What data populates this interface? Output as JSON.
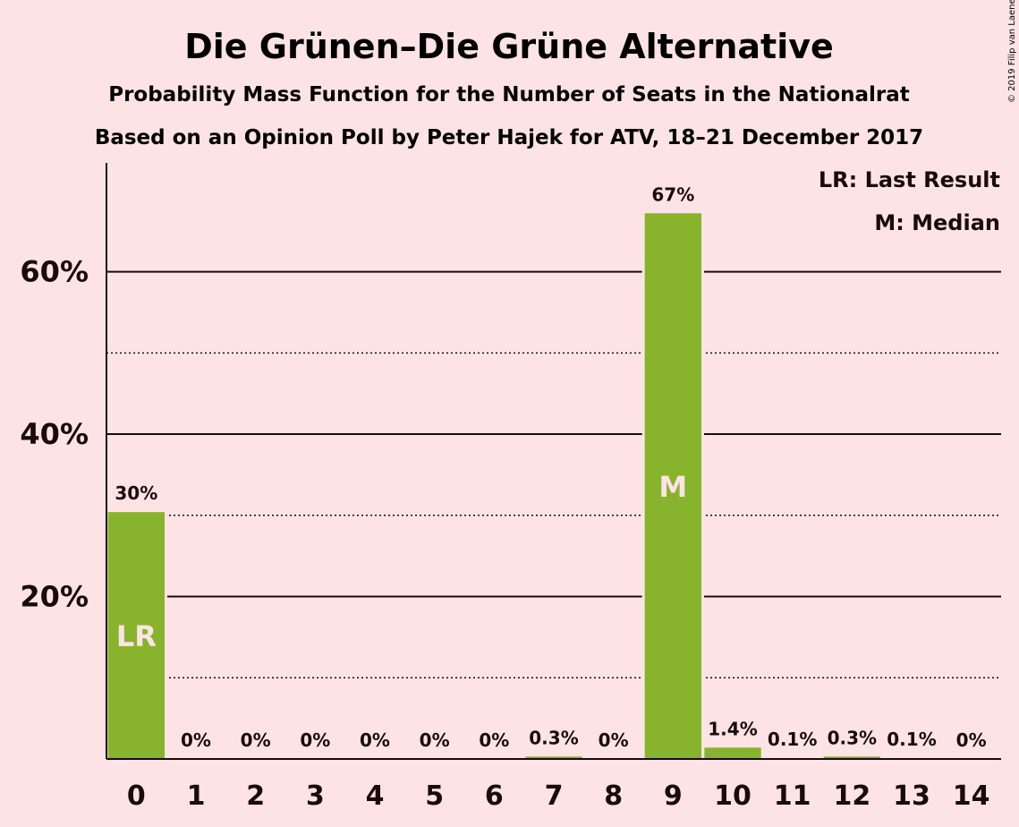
{
  "chart_data": {
    "type": "bar",
    "title": "Die Grünen–Die Grüne Alternative",
    "subtitle_1": "Probability Mass Function for the Number of Seats in the Nationalrat",
    "subtitle_2": "Based on an Opinion Poll by Peter Hajek for ATV, 18–21 December 2017",
    "copyright": "© 2019 Filip van Laenen",
    "categories": [
      "0",
      "1",
      "2",
      "3",
      "4",
      "5",
      "6",
      "7",
      "8",
      "9",
      "10",
      "11",
      "12",
      "13",
      "14"
    ],
    "values": [
      30.4,
      0,
      0,
      0,
      0,
      0,
      0,
      0.3,
      0,
      67.2,
      1.4,
      0.1,
      0.3,
      0.1,
      0
    ],
    "data_labels": [
      "30%",
      "0%",
      "0%",
      "0%",
      "0%",
      "0%",
      "0%",
      "0.3%",
      "0%",
      "67%",
      "1.4%",
      "0.1%",
      "0.3%",
      "0.1%",
      "0%"
    ],
    "bar_marks": [
      {
        "category": "0",
        "text": "LR"
      },
      {
        "category": "9",
        "text": "M"
      }
    ],
    "yticks": [
      {
        "value": 20,
        "label": "20%"
      },
      {
        "value": 40,
        "label": "40%"
      },
      {
        "value": 60,
        "label": "60%"
      }
    ],
    "minor_gridlines": [
      10,
      30,
      50
    ],
    "ylim": [
      0,
      73.4
    ],
    "grid": true,
    "legend_placement": "top-right",
    "legend": [
      "LR: Last Result",
      "M: Median"
    ],
    "colors": {
      "bar": "#88B32C",
      "background": "#FDE3E6",
      "text": "#1a0a0a",
      "bar_mark_text": "#FDE3E6"
    }
  }
}
